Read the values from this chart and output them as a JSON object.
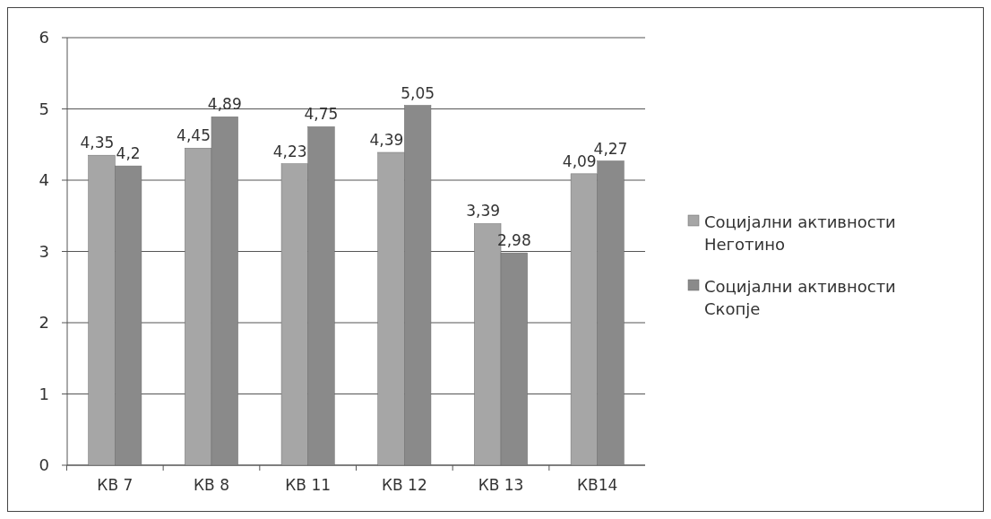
{
  "chart_data": {
    "type": "bar",
    "categories": [
      "КВ 7",
      "КВ 8",
      "КВ 11",
      "КВ 12",
      "КВ 13",
      "КВ14"
    ],
    "series": [
      {
        "name": "Социјални активности Неготино",
        "color": "#a6a6a6",
        "values": [
          4.35,
          4.45,
          4.23,
          4.39,
          3.39,
          4.09
        ],
        "value_labels": [
          "4,35",
          "4,45",
          "4,23",
          "4,39",
          "3,39",
          "4,09"
        ]
      },
      {
        "name": "Социјални активности Скопје",
        "color": "#8a8a8a",
        "values": [
          4.2,
          4.89,
          4.75,
          5.05,
          2.98,
          4.27
        ],
        "value_labels": [
          "4,2",
          "4,89",
          "4,75",
          "5,05",
          "2,98",
          "4,27"
        ]
      }
    ],
    "ylim": [
      0,
      6
    ],
    "yticks": [
      0,
      1,
      2,
      3,
      4,
      5,
      6
    ],
    "grid": "y",
    "legend": "right"
  }
}
